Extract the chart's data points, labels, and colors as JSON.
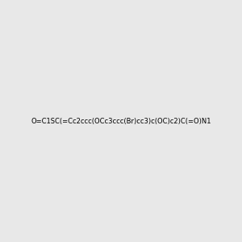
{
  "smiles": "O=C1SC(=Cc2ccc(OCc3ccc(Br)cc3)c(OC)c2)C(=O)N1",
  "title": "",
  "bg_color": "#e8e8e8",
  "figsize": [
    3.0,
    3.0
  ],
  "dpi": 100
}
